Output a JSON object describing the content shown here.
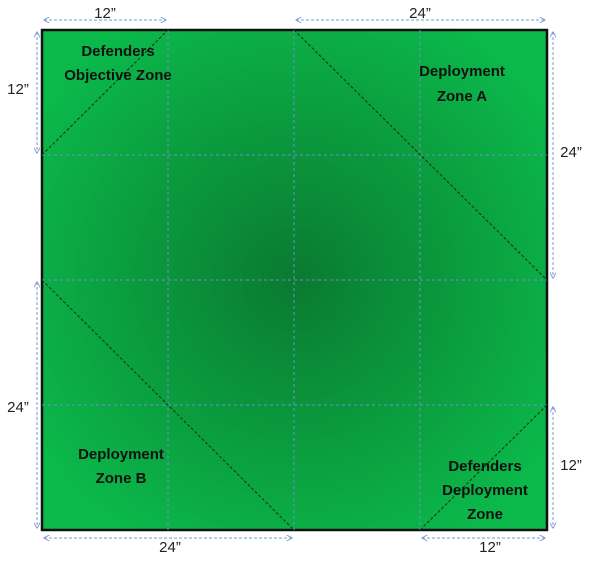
{
  "zones": [
    {
      "lines": [
        "Defenders",
        "Objective Zone"
      ]
    },
    {
      "lines": [
        "Deployment",
        "Zone A"
      ]
    },
    {
      "lines": [
        "Deployment",
        "Zone B"
      ]
    },
    {
      "lines": [
        "Defenders",
        "Deployment",
        "Zone"
      ]
    }
  ],
  "dimensions": [
    {
      "label": "12”"
    },
    {
      "label": "24”"
    },
    {
      "label": "12”"
    },
    {
      "label": "24”"
    },
    {
      "label": "24”"
    },
    {
      "label": "12”"
    },
    {
      "label": "24”"
    },
    {
      "label": "12”"
    }
  ]
}
